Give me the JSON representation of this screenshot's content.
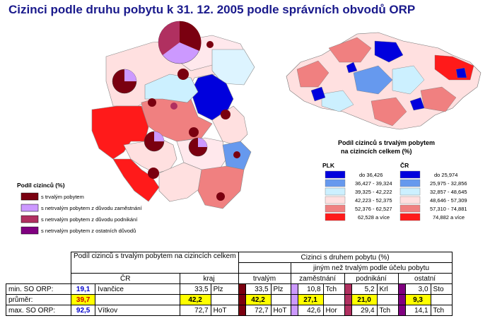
{
  "title": "Cizinci podle druhu pobytu k 31. 12. 2005 podle správních obvodů ORP",
  "left_legend": {
    "title": "Podíl cizinců (%)",
    "items": [
      {
        "label": "s trvalým pobytem",
        "color": "#7a0010"
      },
      {
        "label": "s netrvalým pobytem z důvodu zaměstnání",
        "color": "#cc99ff"
      },
      {
        "label": "s netrvalým pobytem z důvodu podnikání",
        "color": "#b03060"
      },
      {
        "label": "s netrvalým pobytem z ostatních důvodů",
        "color": "#800080"
      }
    ]
  },
  "right_legend": {
    "title_line1": "Podíl cizinců s trvalým pobytem",
    "title_line2": "na cizincích celkem (%)",
    "col1": "PLK",
    "col2": "ČR",
    "colors": [
      "#0000dd",
      "#6699ee",
      "#ccf0ff",
      "#ffe0e0",
      "#f08080",
      "#ff1a1a"
    ],
    "plk": [
      "do 36,426",
      "36,427 - 39,324",
      "39,325 - 42,222",
      "42,223 - 52,375",
      "52,376 - 62,527",
      "62,528 a více"
    ],
    "cr": [
      "do 25,974",
      "25,975 - 32,856",
      "32,857 - 48,645",
      "48,646 - 57,309",
      "57,310 - 74,881",
      "74,882 a více"
    ]
  },
  "table": {
    "header_left": "Podíl cizinců s trvalým pobytem  na cizincích celkem",
    "header_right": "Cizinci s druhem pobytu (%)",
    "sub_cr": "ČR",
    "sub_kraj": "kraj",
    "sub_trvalym": "trvalým",
    "sub_jinym": "jiným než trvalým podle účelu pobytu",
    "sub_zam": "zaměstnání",
    "sub_pod": "podnikání",
    "sub_ost": "ostatní",
    "rows": [
      {
        "label": "min. SO ORP:",
        "cr_val": "19,1",
        "cr_place": "Ivančice",
        "kraj_val": "33,5",
        "kraj_place": "Plz",
        "trv_val": "33,5",
        "trv_place": "Plz",
        "zam_val": "10,8",
        "zam_place": "Tch",
        "pod_val": "5,2",
        "pod_place": "Krl",
        "ost_val": "3,0",
        "ost_place": "Sto"
      },
      {
        "label": "průměr:",
        "cr_val": "39,7",
        "cr_place": "",
        "kraj_val": "42,2",
        "kraj_place": "",
        "trv_val": "42,2",
        "trv_place": "",
        "zam_val": "27,1",
        "zam_place": "",
        "pod_val": "21,0",
        "pod_place": "",
        "ost_val": "9,3",
        "ost_place": ""
      },
      {
        "label": "max. SO ORP:",
        "cr_val": "92,5",
        "cr_place": "Vítkov",
        "kraj_val": "72,7",
        "kraj_place": "HoT",
        "trv_val": "72,7",
        "trv_place": "HoT",
        "zam_val": "42,6",
        "zam_place": "Hor",
        "pod_val": "29,4",
        "pod_place": "Tch",
        "ost_val": "14,1",
        "ost_place": "Tch"
      }
    ]
  }
}
